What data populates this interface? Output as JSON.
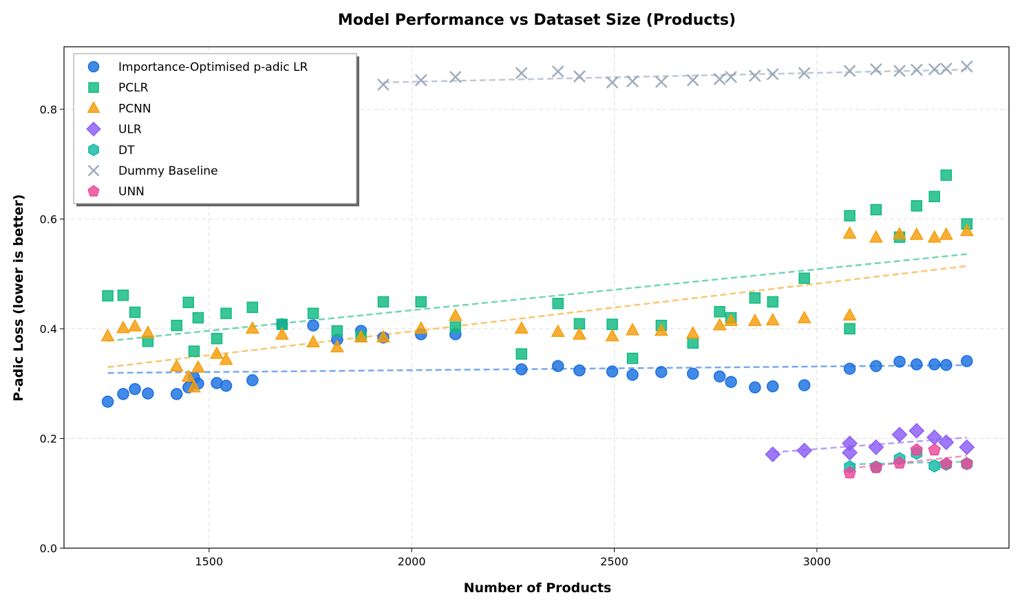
{
  "chart_data": {
    "type": "scatter",
    "title": "Model Performance vs Dataset Size (Products)",
    "xlabel": "Number of Products",
    "ylabel": "P-adic Loss (lower is better)",
    "xlim": [
      1142,
      3474
    ],
    "ylim": [
      0,
      0.914
    ],
    "xticks": [
      1500,
      2000,
      2500,
      3000
    ],
    "yticks": [
      0.0,
      0.2,
      0.4,
      0.6,
      0.8
    ],
    "ytick_labels": [
      "0.0",
      "0.2",
      "0.4",
      "0.6",
      "0.8"
    ],
    "grid": true,
    "legend_position": "top-left",
    "trendlines": "dashed linear fit per series",
    "series": [
      {
        "name": "Importance-Optimised p-adic LR",
        "marker": "circle",
        "color": "#1a6fe0",
        "x": [
          1250,
          1288,
          1317,
          1349,
          1420,
          1449,
          1463,
          1473,
          1519,
          1542,
          1607,
          1680,
          1757,
          1816,
          1875,
          1930,
          2023,
          2108,
          2271,
          2361,
          2414,
          2495,
          2545,
          2616,
          2694,
          2760,
          2788,
          2847,
          2891,
          2969,
          3081,
          3146,
          3204,
          3246,
          3290,
          3319,
          3370
        ],
        "y": [
          0.267,
          0.281,
          0.29,
          0.282,
          0.281,
          0.293,
          0.311,
          0.3,
          0.301,
          0.296,
          0.306,
          0.408,
          0.406,
          0.38,
          0.396,
          0.384,
          0.39,
          0.39,
          0.326,
          0.332,
          0.324,
          0.322,
          0.316,
          0.321,
          0.318,
          0.313,
          0.303,
          0.293,
          0.295,
          0.297,
          0.327,
          0.332,
          0.34,
          0.335,
          0.335,
          0.334,
          0.341
        ]
      },
      {
        "name": "PCLR",
        "marker": "square",
        "color": "#10b981",
        "x": [
          1250,
          1288,
          1317,
          1349,
          1420,
          1449,
          1463,
          1473,
          1519,
          1542,
          1607,
          1680,
          1757,
          1816,
          1875,
          1930,
          2023,
          2108,
          2271,
          2361,
          2414,
          2495,
          2545,
          2616,
          2694,
          2760,
          2788,
          2847,
          2891,
          2969,
          3081,
          3081,
          3146,
          3204,
          3246,
          3290,
          3319,
          3370
        ],
        "y": [
          0.46,
          0.461,
          0.43,
          0.377,
          0.406,
          0.448,
          0.359,
          0.42,
          0.382,
          0.428,
          0.439,
          0.408,
          0.428,
          0.396,
          0.386,
          0.449,
          0.449,
          0.403,
          0.354,
          0.446,
          0.409,
          0.408,
          0.346,
          0.406,
          0.374,
          0.431,
          0.42,
          0.456,
          0.449,
          0.492,
          0.4,
          0.606,
          0.617,
          0.567,
          0.624,
          0.641,
          0.68,
          0.591
        ]
      },
      {
        "name": "PCNN",
        "marker": "triangle",
        "color": "#f59e0b",
        "x": [
          1250,
          1288,
          1317,
          1349,
          1420,
          1449,
          1463,
          1473,
          1519,
          1542,
          1607,
          1680,
          1757,
          1816,
          1875,
          1930,
          2023,
          2108,
          2271,
          2361,
          2414,
          2495,
          2545,
          2616,
          2694,
          2760,
          2788,
          2847,
          2891,
          2969,
          3081,
          3081,
          3146,
          3204,
          3246,
          3290,
          3319,
          3370
        ],
        "y": [
          0.386,
          0.401,
          0.404,
          0.392,
          0.331,
          0.312,
          0.293,
          0.329,
          0.354,
          0.343,
          0.4,
          0.389,
          0.375,
          0.366,
          0.384,
          0.384,
          0.4,
          0.423,
          0.4,
          0.394,
          0.389,
          0.386,
          0.397,
          0.396,
          0.391,
          0.406,
          0.414,
          0.414,
          0.415,
          0.419,
          0.424,
          0.573,
          0.566,
          0.572,
          0.571,
          0.566,
          0.571,
          0.578
        ]
      },
      {
        "name": "ULR",
        "marker": "diamond",
        "color": "#8b5cf6",
        "x": [
          2891,
          2969,
          3081,
          3081,
          3146,
          3204,
          3246,
          3290,
          3319,
          3370
        ],
        "y": [
          0.171,
          0.178,
          0.191,
          0.174,
          0.184,
          0.207,
          0.214,
          0.202,
          0.193,
          0.184
        ]
      },
      {
        "name": "DT",
        "marker": "hexagon",
        "color": "#14b8a6",
        "x": [
          3081,
          3146,
          3204,
          3246,
          3290,
          3319,
          3370
        ],
        "y": [
          0.148,
          0.148,
          0.163,
          0.173,
          0.15,
          0.153,
          0.154
        ]
      },
      {
        "name": "Dummy Baseline",
        "marker": "x",
        "color": "#94a3b8",
        "x": [
          1930,
          2023,
          2108,
          2271,
          2361,
          2414,
          2495,
          2545,
          2616,
          2694,
          2760,
          2788,
          2847,
          2891,
          2969,
          3081,
          3146,
          3204,
          3246,
          3290,
          3319,
          3370
        ],
        "y": [
          0.845,
          0.853,
          0.859,
          0.866,
          0.869,
          0.86,
          0.849,
          0.851,
          0.85,
          0.853,
          0.855,
          0.859,
          0.861,
          0.864,
          0.866,
          0.87,
          0.873,
          0.87,
          0.872,
          0.873,
          0.874,
          0.878
        ]
      },
      {
        "name": "UNN",
        "marker": "pentagon",
        "color": "#ec4899",
        "x": [
          3081,
          3146,
          3204,
          3246,
          3290,
          3319,
          3370
        ],
        "y": [
          0.137,
          0.147,
          0.155,
          0.179,
          0.179,
          0.154,
          0.154
        ]
      }
    ]
  }
}
